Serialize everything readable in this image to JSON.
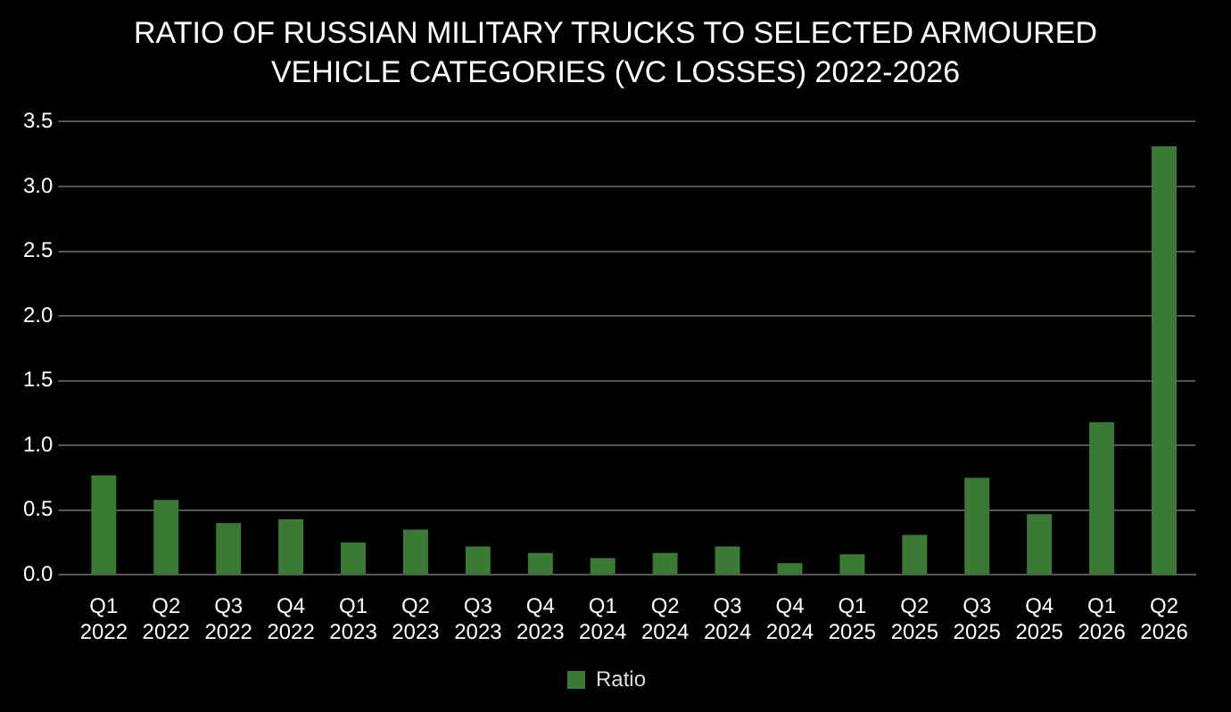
{
  "chart_data": {
    "type": "bar",
    "title": "RATIO OF RUSSIAN MILITARY TRUCKS TO SELECTED ARMOURED VEHICLE CATEGORIES (VC LOSSES) 2022-2026",
    "categories": [
      "Q1 2022",
      "Q2 2022",
      "Q3 2022",
      "Q4 2022",
      "Q1 2023",
      "Q2 2023",
      "Q3 2023",
      "Q4 2023",
      "Q1 2024",
      "Q2 2024",
      "Q3 2024",
      "Q4 2024",
      "Q1 2025",
      "Q2 2025",
      "Q3 2025",
      "Q4 2025",
      "Q1 2026",
      "Q2 2026"
    ],
    "series": [
      {
        "name": "Ratio",
        "color": "#3a7a35",
        "values": [
          0.77,
          0.58,
          0.4,
          0.43,
          0.25,
          0.35,
          0.22,
          0.17,
          0.13,
          0.17,
          0.22,
          0.09,
          0.16,
          0.31,
          0.75,
          0.47,
          1.18,
          3.31
        ]
      }
    ],
    "ylim": [
      0,
      3.5
    ],
    "yticks": [
      {
        "value": 0,
        "label": "0.0"
      },
      0.5,
      {
        "value": 1,
        "label": "1.0"
      },
      1.5,
      {
        "value": 2,
        "label": "2.0"
      },
      2.5,
      {
        "value": 3,
        "label": "3.0"
      },
      3.5
    ],
    "grid": "y",
    "legend": "bottom"
  }
}
